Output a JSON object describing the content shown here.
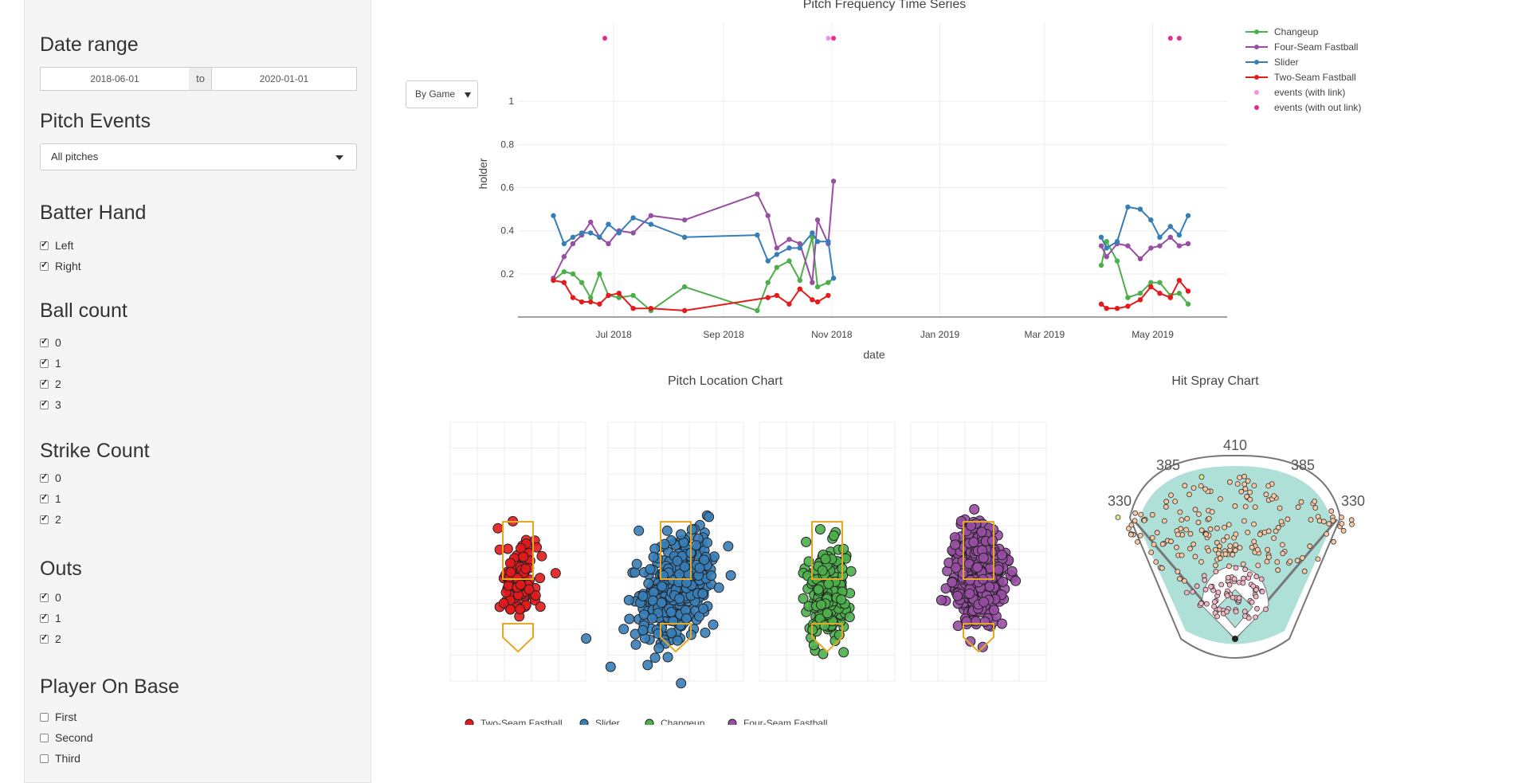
{
  "sidebar": {
    "date_range": {
      "title": "Date range",
      "start": "2018-06-01",
      "sep": "to",
      "end": "2020-01-01"
    },
    "pitch_events": {
      "title": "Pitch Events",
      "selected": "All pitches"
    },
    "batter_hand": {
      "title": "Batter Hand",
      "options": [
        {
          "label": "Left",
          "checked": true
        },
        {
          "label": "Right",
          "checked": true
        }
      ]
    },
    "ball_count": {
      "title": "Ball count",
      "options": [
        {
          "label": "0",
          "checked": true
        },
        {
          "label": "1",
          "checked": true
        },
        {
          "label": "2",
          "checked": true
        },
        {
          "label": "3",
          "checked": true
        }
      ]
    },
    "strike_count": {
      "title": "Strike Count",
      "options": [
        {
          "label": "0",
          "checked": true
        },
        {
          "label": "1",
          "checked": true
        },
        {
          "label": "2",
          "checked": true
        }
      ]
    },
    "outs": {
      "title": "Outs",
      "options": [
        {
          "label": "0",
          "checked": true
        },
        {
          "label": "1",
          "checked": true
        },
        {
          "label": "2",
          "checked": true
        }
      ]
    },
    "player_on_base": {
      "title": "Player On Base",
      "options": [
        {
          "label": "First",
          "checked": false
        },
        {
          "label": "Second",
          "checked": false
        },
        {
          "label": "Third",
          "checked": false
        }
      ]
    }
  },
  "timeseries": {
    "title": "Pitch Frequency Time Series",
    "dropdown_value": "By Game",
    "xlabel": "date",
    "ylabel": "holder"
  },
  "location": {
    "title": "Pitch Location Chart"
  },
  "spray": {
    "title": "Hit Spray Chart",
    "distances": [
      "410",
      "385",
      "385",
      "330",
      "330"
    ]
  },
  "colors": {
    "changeup": "#4daf4a",
    "four_seam": "#984ea3",
    "slider": "#377eb8",
    "two_seam": "#e41a1c",
    "event_light": "#f78fe1",
    "event_dark": "#e7298a",
    "strike_zone": "#e5a823",
    "field": "#aee0d8"
  },
  "chart_data": [
    {
      "type": "line",
      "title": "Pitch Frequency Time Series",
      "xlabel": "date",
      "ylabel": "holder",
      "x_ticks": [
        "Jul 2018",
        "Sep 2018",
        "Nov 2018",
        "Jan 2019",
        "Mar 2019",
        "May 2019"
      ],
      "y_ticks": [
        "0.2",
        "0.4",
        "0.6",
        "0.8",
        "1"
      ],
      "xlim": [
        "2018-05-08",
        "2019-06-12"
      ],
      "ylim": [
        0,
        1.1
      ],
      "legend_position": "top-right",
      "series": [
        {
          "name": "Changeup",
          "color": "#4daf4a",
          "points": [
            [
              "2018-05-28",
              0.17
            ],
            [
              "2018-06-03",
              0.21
            ],
            [
              "2018-06-08",
              0.2
            ],
            [
              "2018-06-13",
              0.16
            ],
            [
              "2018-06-18",
              0.09
            ],
            [
              "2018-06-23",
              0.2
            ],
            [
              "2018-06-28",
              0.1
            ],
            [
              "2018-07-04",
              0.09
            ],
            [
              "2018-07-12",
              0.1
            ],
            [
              "2018-07-22",
              0.03
            ],
            [
              "2018-08-10",
              0.14
            ],
            [
              "2018-09-20",
              0.03
            ],
            [
              "2018-09-26",
              0.16
            ],
            [
              "2018-10-01",
              0.23
            ],
            [
              "2018-10-08",
              0.26
            ],
            [
              "2018-10-14",
              0.17
            ],
            [
              "2018-10-21",
              0.37
            ],
            [
              "2018-10-24",
              0.14
            ],
            [
              "2018-10-30",
              0.16
            ],
            [
              "2018-11-02",
              0.18
            ],
            [
              "2019-04-02",
              0.24
            ],
            [
              "2019-04-05",
              0.35
            ],
            [
              "2019-04-11",
              0.26
            ],
            [
              "2019-04-17",
              0.09
            ],
            [
              "2019-04-24",
              0.11
            ],
            [
              "2019-04-30",
              0.16
            ],
            [
              "2019-05-05",
              0.16
            ],
            [
              "2019-05-11",
              0.1
            ],
            [
              "2019-05-16",
              0.11
            ],
            [
              "2019-05-21",
              0.06
            ]
          ]
        },
        {
          "name": "Four-Seam Fastball",
          "color": "#984ea3",
          "points": [
            [
              "2018-05-28",
              0.18
            ],
            [
              "2018-06-03",
              0.28
            ],
            [
              "2018-06-08",
              0.34
            ],
            [
              "2018-06-13",
              0.38
            ],
            [
              "2018-06-18",
              0.44
            ],
            [
              "2018-06-23",
              0.37
            ],
            [
              "2018-06-28",
              0.34
            ],
            [
              "2018-07-04",
              0.4
            ],
            [
              "2018-07-12",
              0.39
            ],
            [
              "2018-07-22",
              0.47
            ],
            [
              "2018-08-10",
              0.45
            ],
            [
              "2018-09-20",
              0.57
            ],
            [
              "2018-09-26",
              0.47
            ],
            [
              "2018-10-01",
              0.32
            ],
            [
              "2018-10-08",
              0.36
            ],
            [
              "2018-10-14",
              0.34
            ],
            [
              "2018-10-21",
              0.16
            ],
            [
              "2018-10-24",
              0.45
            ],
            [
              "2018-10-30",
              0.34
            ],
            [
              "2018-11-02",
              0.63
            ],
            [
              "2019-04-02",
              0.33
            ],
            [
              "2019-04-05",
              0.28
            ],
            [
              "2019-04-11",
              0.34
            ],
            [
              "2019-04-17",
              0.33
            ],
            [
              "2019-04-24",
              0.27
            ],
            [
              "2019-04-30",
              0.32
            ],
            [
              "2019-05-05",
              0.33
            ],
            [
              "2019-05-11",
              0.37
            ],
            [
              "2019-05-16",
              0.33
            ],
            [
              "2019-05-21",
              0.34
            ]
          ]
        },
        {
          "name": "Slider",
          "color": "#377eb8",
          "points": [
            [
              "2018-05-28",
              0.47
            ],
            [
              "2018-06-03",
              0.34
            ],
            [
              "2018-06-08",
              0.37
            ],
            [
              "2018-06-13",
              0.39
            ],
            [
              "2018-06-18",
              0.39
            ],
            [
              "2018-06-23",
              0.37
            ],
            [
              "2018-06-28",
              0.43
            ],
            [
              "2018-07-04",
              0.39
            ],
            [
              "2018-07-12",
              0.46
            ],
            [
              "2018-07-22",
              0.43
            ],
            [
              "2018-08-10",
              0.37
            ],
            [
              "2018-09-20",
              0.38
            ],
            [
              "2018-09-26",
              0.26
            ],
            [
              "2018-10-01",
              0.29
            ],
            [
              "2018-10-08",
              0.32
            ],
            [
              "2018-10-14",
              0.32
            ],
            [
              "2018-10-21",
              0.39
            ],
            [
              "2018-10-24",
              0.35
            ],
            [
              "2018-10-30",
              0.35
            ],
            [
              "2018-11-02",
              0.18
            ],
            [
              "2019-04-02",
              0.37
            ],
            [
              "2019-04-05",
              0.32
            ],
            [
              "2019-04-11",
              0.35
            ],
            [
              "2019-04-17",
              0.51
            ],
            [
              "2019-04-24",
              0.5
            ],
            [
              "2019-04-30",
              0.45
            ],
            [
              "2019-05-05",
              0.37
            ],
            [
              "2019-05-11",
              0.42
            ],
            [
              "2019-05-16",
              0.38
            ],
            [
              "2019-05-21",
              0.47
            ]
          ]
        },
        {
          "name": "Two-Seam Fastball",
          "color": "#e41a1c",
          "points": [
            [
              "2018-05-28",
              0.17
            ],
            [
              "2018-06-03",
              0.16
            ],
            [
              "2018-06-08",
              0.09
            ],
            [
              "2018-06-13",
              0.07
            ],
            [
              "2018-06-18",
              0.07
            ],
            [
              "2018-06-23",
              0.06
            ],
            [
              "2018-06-28",
              0.1
            ],
            [
              "2018-07-04",
              0.11
            ],
            [
              "2018-07-12",
              0.04
            ],
            [
              "2018-07-22",
              0.04
            ],
            [
              "2018-08-10",
              0.03
            ],
            [
              "2018-09-26",
              0.09
            ],
            [
              "2018-10-01",
              0.1
            ],
            [
              "2018-10-08",
              0.06
            ],
            [
              "2018-10-14",
              0.13
            ],
            [
              "2018-10-21",
              0.08
            ],
            [
              "2018-10-24",
              0.07
            ],
            [
              "2018-10-30",
              0.1
            ],
            [
              "2019-04-02",
              0.06
            ],
            [
              "2019-04-05",
              0.04
            ],
            [
              "2019-04-11",
              0.04
            ],
            [
              "2019-04-17",
              0.05
            ],
            [
              "2019-04-24",
              0.08
            ],
            [
              "2019-04-30",
              0.14
            ],
            [
              "2019-05-05",
              0.11
            ],
            [
              "2019-05-11",
              0.09
            ],
            [
              "2019-05-16",
              0.17
            ],
            [
              "2019-05-21",
              0.12
            ]
          ]
        }
      ],
      "event_series": [
        {
          "name": "events (with link)",
          "color": "#f78fe1",
          "points": [
            [
              "2018-10-30",
              1.2
            ]
          ]
        },
        {
          "name": "events (with out link)",
          "color": "#e7298a",
          "points": [
            [
              "2018-06-26",
              1.2
            ],
            [
              "2018-11-02",
              1.2
            ],
            [
              "2019-05-11",
              1.2
            ],
            [
              "2019-05-16",
              1.2
            ]
          ]
        }
      ]
    },
    {
      "type": "scatter",
      "title": "Pitch Location Chart",
      "legend_position": "bottom",
      "series": [
        {
          "name": "Two-Seam Fastball",
          "color": "#e41a1c",
          "center": [
            0,
            2.55
          ],
          "spread": [
            0.32,
            0.62
          ],
          "count": 140
        },
        {
          "name": "Slider",
          "color": "#377eb8",
          "center": [
            0,
            2.3
          ],
          "spread": [
            0.55,
            0.85
          ],
          "count": 420
        },
        {
          "name": "Changeup",
          "color": "#4daf4a",
          "center": [
            0,
            2.05
          ],
          "spread": [
            0.35,
            0.75
          ],
          "count": 230
        },
        {
          "name": "Four-Seam Fastball",
          "color": "#984ea3",
          "center": [
            0,
            2.75
          ],
          "spread": [
            0.42,
            0.8
          ],
          "count": 480
        }
      ]
    },
    {
      "type": "scatter",
      "title": "Hit Spray Chart",
      "annotations": [
        "410",
        "385",
        "385",
        "330",
        "330"
      ]
    }
  ]
}
